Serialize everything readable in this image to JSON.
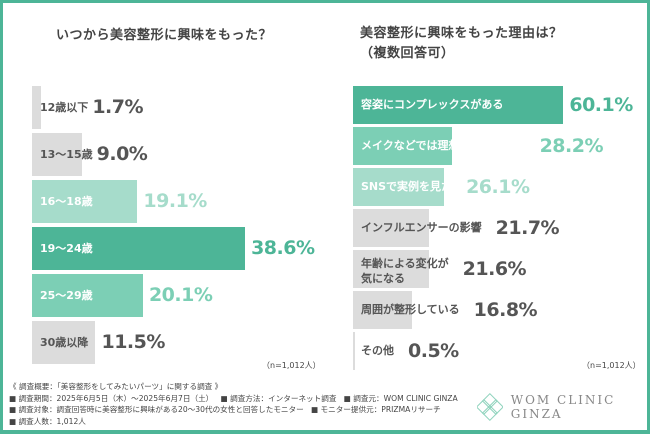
{
  "colors": {
    "frame": "#4db597",
    "dark_teal": "#4db597",
    "mid_teal": "#7ccfb5",
    "light_teal": "#a6dccb",
    "gray_bar": "#dcdcdc",
    "gray_text": "#555555"
  },
  "chart_data": [
    {
      "type": "bar",
      "orientation": "horizontal",
      "title": "いつから美容整形に興味をもった？",
      "categories": [
        "12歳以下",
        "13〜15歳",
        "16〜18歳",
        "19〜24歳",
        "25〜29歳",
        "30歳以降"
      ],
      "values": [
        1.7,
        9.0,
        19.1,
        38.6,
        20.1,
        11.5
      ],
      "value_labels": [
        "1.7%",
        "9.0%",
        "19.1%",
        "38.6%",
        "20.1%",
        "11.5%"
      ],
      "styles": [
        "gray",
        "gray",
        "light",
        "dark",
        "mid",
        "gray"
      ],
      "unit": "%",
      "note": "（n=1,012人）"
    },
    {
      "type": "bar",
      "orientation": "horizontal",
      "title": "美容整形に興味をもった理由は？",
      "subtitle": "（複数回答可）",
      "categories": [
        "容姿にコンプレックスがある",
        "メイクなどでは理想に近づけない",
        "SNSで実例を見た",
        "インフルエンサーの影響",
        "年齢による変化が\n気になる",
        "周囲が整形している",
        "その他"
      ],
      "values": [
        60.1,
        28.2,
        26.1,
        21.7,
        21.6,
        16.8,
        0.5
      ],
      "value_labels": [
        "60.1%",
        "28.2%",
        "26.1%",
        "21.7%",
        "21.6%",
        "16.8%",
        "0.5%"
      ],
      "styles": [
        "dark",
        "mid",
        "light",
        "gray",
        "gray",
        "gray",
        "gray"
      ],
      "unit": "%",
      "note": "（n=1,012人）"
    }
  ],
  "footer": {
    "line1": "《 調査概要：「美容整形をしてみたいパーツ」に関する調査 》",
    "period": "■ 調査期間：2025年6月5日（木）〜2025年6月7日（土）",
    "method": "■ 調査方法：インターネット調査",
    "source": "■ 調査元：WOM CLINIC GINZA",
    "target": "■ 調査対象：調査回答時に美容整形に興味がある20〜30代の女性と回答したモニター",
    "provider": "■ モニター提供元：PRIZMAリサーチ",
    "count": "■ 調査人数：1,012人"
  },
  "logo": {
    "icon": "clover-logo-icon",
    "text": "WOM CLINIC GINZA"
  }
}
